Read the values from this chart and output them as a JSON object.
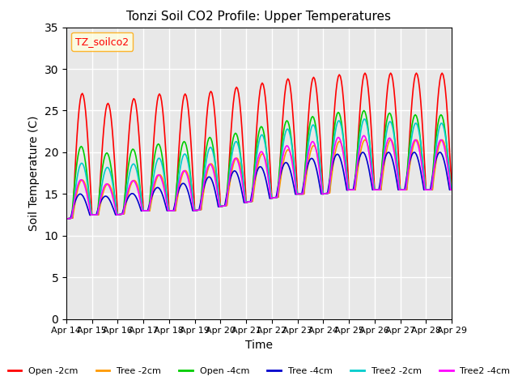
{
  "title": "Tonzi Soil CO2 Profile: Upper Temperatures",
  "xlabel": "Time",
  "ylabel": "Soil Temperature (C)",
  "ylim": [
    0,
    35
  ],
  "yticks": [
    0,
    5,
    10,
    15,
    20,
    25,
    30,
    35
  ],
  "xlim": [
    0,
    360
  ],
  "x_tick_labels": [
    "Apr 14",
    "Apr 15",
    "Apr 16",
    "Apr 17",
    "Apr 18",
    "Apr 19",
    "Apr 20",
    "Apr 21",
    "Apr 22",
    "Apr 23",
    "Apr 24",
    "Apr 25",
    "Apr 26",
    "Apr 27",
    "Apr 28",
    "Apr 29"
  ],
  "x_tick_positions": [
    0,
    24,
    48,
    72,
    96,
    120,
    144,
    168,
    192,
    216,
    240,
    264,
    288,
    312,
    336,
    360
  ],
  "legend_label": "TZ_soilco2",
  "series_labels": [
    "Open -2cm",
    "Tree -2cm",
    "Open -4cm",
    "Tree -4cm",
    "Tree2 -2cm",
    "Tree2 -4cm"
  ],
  "series_colors": [
    "#ff0000",
    "#ff9900",
    "#00cc00",
    "#0000cc",
    "#00cccc",
    "#ff00ff"
  ],
  "background_color": "#e8e8e8",
  "grid_color": "#ffffff",
  "n_points": 361,
  "base_min": 9.0,
  "base_max": 15.0,
  "daily_amplitude_open2": [
    16,
    14,
    13,
    14,
    14,
    14,
    14,
    14,
    14,
    14,
    14,
    14,
    14,
    14,
    14
  ],
  "daily_amplitude_tree2": [
    5,
    4,
    3.5,
    4,
    4.5,
    5,
    5.5,
    5.5,
    5.5,
    5.5,
    6,
    6,
    6,
    6,
    6
  ],
  "daily_amplitude_open4": [
    9,
    8,
    7,
    8,
    8,
    8.5,
    8.5,
    8.5,
    9,
    9,
    9.5,
    9.5,
    9.5,
    9,
    9
  ],
  "daily_amplitude_tree4": [
    3,
    2.5,
    2,
    2.5,
    3,
    3.5,
    4,
    4,
    4,
    4,
    4.5,
    4.5,
    4.5,
    4.5,
    4.5
  ],
  "daily_amplitude_tree2cm": [
    7,
    6,
    5.5,
    6,
    6.5,
    7,
    7.5,
    7.5,
    8,
    8,
    8.5,
    8.5,
    8.5,
    8,
    8
  ],
  "daily_amplitude_tree24cm": [
    5,
    4,
    3.5,
    4,
    4.5,
    5,
    5.5,
    5.5,
    6,
    6,
    6.5,
    6.5,
    6.5,
    6,
    6
  ],
  "base_trend": [
    12.0,
    12.5,
    12.5,
    13.0,
    13.0,
    13.0,
    13.5,
    14.0,
    14.5,
    15.0,
    15.0,
    15.5,
    15.5,
    15.5,
    15.5,
    15.5
  ]
}
